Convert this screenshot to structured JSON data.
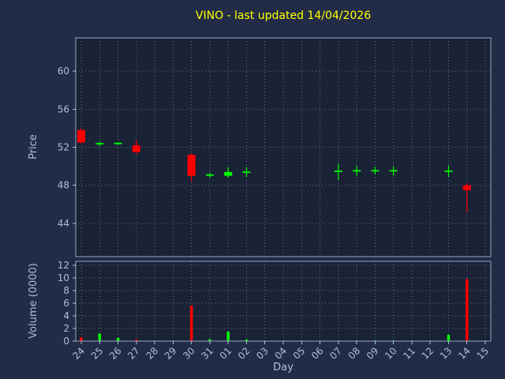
{
  "colors": {
    "figure_bg": "#232c47",
    "plot_bg": "#1a2236",
    "grid": "#5d6b8a",
    "spine": "#93a7c4",
    "text": "#a9c1de",
    "title": "#ffff00",
    "up": "#00ff00",
    "down": "#ff0000"
  },
  "chart_data": {
    "type": "candlestick",
    "title": "VINO - last updated 14/04/2026",
    "xlabel": "Day",
    "price_ylabel": "Price",
    "volume_ylabel": "Volume (0000)",
    "legend": "none",
    "grid": "dotted",
    "categories": [
      "24",
      "25",
      "26",
      "27",
      "28",
      "29",
      "30",
      "31",
      "01",
      "02",
      "03",
      "04",
      "05",
      "06",
      "07",
      "08",
      "09",
      "10",
      "11",
      "12",
      "13",
      "14",
      "15"
    ],
    "price_ticks": [
      44,
      48,
      52,
      56,
      60
    ],
    "price_ylim": [
      40.5,
      63.5
    ],
    "volume_ticks": [
      0,
      2,
      4,
      6,
      8,
      10,
      12
    ],
    "volume_ylim": [
      0,
      12.6
    ],
    "candles": [
      {
        "open": 53.8,
        "high": 54.0,
        "low": 52.4,
        "close": 52.5
      },
      {
        "open": 52.3,
        "high": 52.6,
        "low": 52.1,
        "close": 52.45
      },
      {
        "open": 52.35,
        "high": 52.55,
        "low": 52.25,
        "close": 52.45
      },
      {
        "open": 52.2,
        "high": 52.7,
        "low": 51.3,
        "close": 51.5
      },
      null,
      null,
      {
        "open": 51.2,
        "high": 51.35,
        "low": 48.4,
        "close": 49.0
      },
      {
        "open": 49.0,
        "high": 49.35,
        "low": 48.75,
        "close": 49.15
      },
      {
        "open": 49.0,
        "high": 49.9,
        "low": 48.8,
        "close": 49.4
      },
      {
        "open": 49.3,
        "high": 49.9,
        "low": 48.9,
        "close": 49.45
      },
      null,
      null,
      null,
      null,
      {
        "open": 49.4,
        "high": 50.3,
        "low": 48.6,
        "close": 49.55
      },
      {
        "open": 49.45,
        "high": 50.05,
        "low": 49.0,
        "close": 49.6
      },
      {
        "open": 49.45,
        "high": 49.95,
        "low": 49.15,
        "close": 49.6
      },
      {
        "open": 49.45,
        "high": 50.0,
        "low": 49.0,
        "close": 49.6
      },
      null,
      null,
      {
        "open": 49.4,
        "high": 50.1,
        "low": 48.9,
        "close": 49.55
      },
      {
        "open": 48.0,
        "high": 48.25,
        "low": 45.2,
        "close": 47.5
      },
      null
    ],
    "volumes": [
      0.6,
      1.2,
      0.5,
      0.25,
      0,
      0,
      5.6,
      0.3,
      1.5,
      0.25,
      0,
      0,
      0,
      0,
      0.1,
      0.1,
      0.1,
      0.1,
      0,
      0,
      1.0,
      9.8,
      0
    ]
  }
}
